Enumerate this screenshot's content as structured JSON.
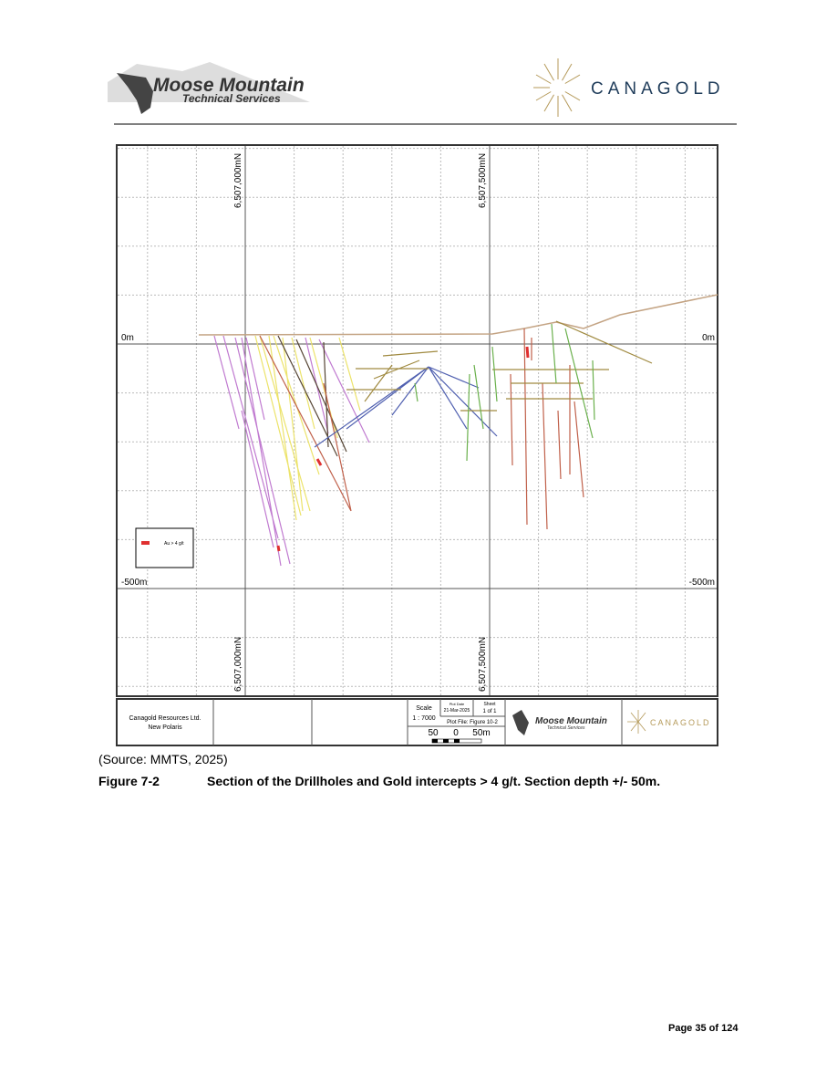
{
  "header": {
    "logo_left": {
      "title": "Moose Mountain",
      "subtitle": "Technical Services"
    },
    "logo_right": "CANAGOLD"
  },
  "figure": {
    "grid_labels": {
      "northing_top_left": "6,507,000mN",
      "northing_top_right": "6,507,500mN",
      "northing_bottom_left": "6,507,000mN",
      "northing_bottom_right": "6,507,500mN",
      "elev_0_left": "0m",
      "elev_0_right": "0m",
      "elev_500_left": "-500m",
      "elev_500_right": "-500m"
    },
    "legend": "Au > 4 g/t",
    "title_block": {
      "company": "Canagold Resources Ltd.",
      "project": "New Polaris",
      "scale_label": "Scale",
      "scale": "1 : 7000",
      "plot_date_label": "Plot Date",
      "plot_date": "21-Mar-2025",
      "sheet_label": "Sheet",
      "sheet": "1 of 1",
      "plot_file": "Plot File: Figure 10-2",
      "scale_bar": [
        "50",
        "0",
        "50m"
      ],
      "logo_title": "Moose Mountain",
      "logo_subtitle": "Technical Services",
      "logo_right": "CANAGOLD"
    }
  },
  "caption": {
    "source": "(Source:  MMTS, 2025)",
    "figure_number": "Figure 7-2",
    "figure_title": "Section of the Drillholes and Gold intercepts > 4 g/t.  Section depth +/- 50m."
  },
  "footer": {
    "page": "Page 35 of 124"
  }
}
